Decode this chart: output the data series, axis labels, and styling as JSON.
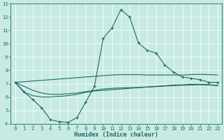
{
  "xlabel": "Humidex (Indice chaleur)",
  "xlim": [
    -0.5,
    23.5
  ],
  "ylim": [
    4,
    13
  ],
  "xticks": [
    0,
    1,
    2,
    3,
    4,
    5,
    6,
    7,
    8,
    9,
    10,
    11,
    12,
    13,
    14,
    15,
    16,
    17,
    18,
    19,
    20,
    21,
    22,
    23
  ],
  "yticks": [
    4,
    5,
    6,
    7,
    8,
    9,
    10,
    11,
    12,
    13
  ],
  "bg_color": "#c8eae5",
  "grid_color": "#b0d8d2",
  "line_color": "#1e6b5e",
  "line1_x": [
    0,
    1,
    2,
    3,
    4,
    5,
    6,
    7,
    8,
    9,
    10,
    11,
    12,
    13,
    14,
    15,
    16,
    17,
    18,
    19,
    20,
    21,
    22,
    23
  ],
  "line1_y": [
    7.1,
    6.4,
    5.8,
    5.2,
    4.3,
    4.15,
    4.1,
    4.45,
    5.6,
    6.8,
    10.4,
    11.2,
    12.55,
    12.0,
    10.05,
    9.5,
    9.3,
    8.4,
    7.85,
    7.5,
    7.4,
    7.3,
    7.1,
    7.1
  ],
  "line2_x": [
    0,
    1,
    2,
    3,
    4,
    5,
    6,
    7,
    8,
    9,
    10,
    11,
    12,
    13,
    14,
    15,
    16,
    17,
    18,
    19,
    20,
    21,
    22,
    23
  ],
  "line2_y": [
    7.1,
    7.15,
    7.2,
    7.25,
    7.3,
    7.35,
    7.4,
    7.45,
    7.5,
    7.55,
    7.6,
    7.65,
    7.68,
    7.68,
    7.68,
    7.65,
    7.65,
    7.65,
    7.65,
    7.65,
    7.68,
    7.7,
    7.68,
    7.65
  ],
  "line3_x": [
    0,
    1,
    2,
    3,
    4,
    5,
    6,
    7,
    8,
    9,
    10,
    11,
    12,
    13,
    14,
    15,
    16,
    17,
    18,
    19,
    20,
    21,
    22,
    23
  ],
  "line3_y": [
    7.1,
    6.35,
    6.1,
    6.0,
    6.0,
    6.05,
    6.1,
    6.2,
    6.35,
    6.45,
    6.5,
    6.55,
    6.6,
    6.65,
    6.7,
    6.75,
    6.8,
    6.85,
    6.9,
    6.92,
    6.95,
    6.95,
    6.93,
    6.88
  ],
  "line4_x": [
    0,
    1,
    2,
    3,
    4,
    5,
    6,
    7,
    8,
    9,
    10,
    11,
    12,
    13,
    14,
    15,
    16,
    17,
    18,
    19,
    20,
    21,
    22,
    23
  ],
  "line4_y": [
    7.1,
    6.8,
    6.5,
    6.3,
    6.2,
    6.2,
    6.25,
    6.3,
    6.4,
    6.5,
    6.6,
    6.65,
    6.68,
    6.7,
    6.72,
    6.75,
    6.78,
    6.82,
    6.85,
    6.88,
    6.9,
    6.92,
    6.9,
    6.85
  ]
}
